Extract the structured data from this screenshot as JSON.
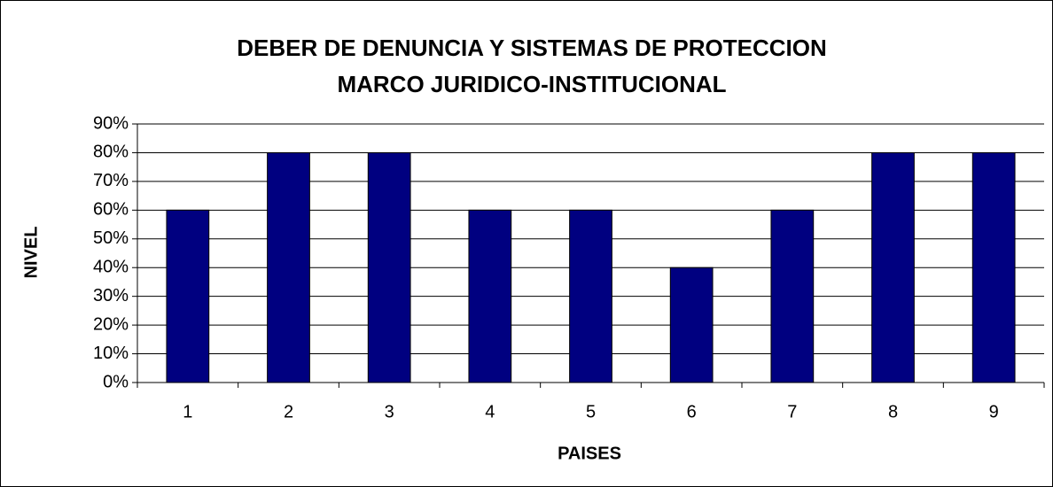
{
  "chart_data": {
    "type": "bar",
    "title": "DEBER DE DENUNCIA Y SISTEMAS DE PROTECCION",
    "subtitle": "MARCO JURIDICO-INSTITUCIONAL",
    "x_label": "PAISES",
    "y_label": "NIVEL",
    "categories": [
      "1",
      "2",
      "3",
      "4",
      "5",
      "6",
      "7",
      "8",
      "9"
    ],
    "values": [
      60,
      80,
      80,
      60,
      60,
      40,
      60,
      80,
      80
    ],
    "color": "#000080",
    "ylim": [
      0,
      90
    ],
    "yticks": [
      {
        "value": 0,
        "label": "0%"
      },
      {
        "value": 10,
        "label": "10%"
      },
      {
        "value": 20,
        "label": "20%"
      },
      {
        "value": 30,
        "label": "30%"
      },
      {
        "value": 40,
        "label": "40%"
      },
      {
        "value": 50,
        "label": "50%"
      },
      {
        "value": 60,
        "label": "60%"
      },
      {
        "value": 70,
        "label": "70%"
      },
      {
        "value": 80,
        "label": "80%"
      },
      {
        "value": 90,
        "label": "90%"
      }
    ],
    "grid": true
  }
}
